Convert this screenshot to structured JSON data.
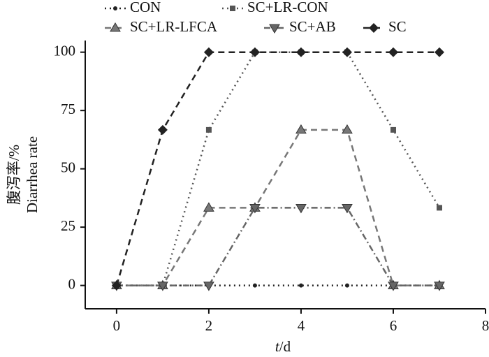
{
  "chart_data": {
    "type": "line",
    "y_label": [
      "腹泻率/%",
      "Diarrhea rate"
    ],
    "x_label": {
      "variable": "t",
      "unit": "/d"
    },
    "x": [
      0,
      1,
      2,
      3,
      4,
      5,
      6,
      7
    ],
    "series": [
      {
        "name": "CON",
        "color": "#222222",
        "dash": "dotted",
        "marker": "circle",
        "values": [
          0,
          0,
          0,
          0,
          0,
          0,
          0,
          0
        ]
      },
      {
        "name": "SC+LR-CON",
        "color": "#555555",
        "dash": "dotted",
        "marker": "square",
        "values": [
          0,
          0,
          66.7,
          100,
          100,
          100,
          66.7,
          33.3
        ]
      },
      {
        "name": "SC+LR-LFCA",
        "color": "#777777",
        "dash": "dashed",
        "marker": "triangle-up",
        "values": [
          0,
          0,
          33.3,
          33.3,
          66.7,
          66.7,
          0,
          0
        ]
      },
      {
        "name": "SC+AB",
        "color": "#666666",
        "dash": "dashdot",
        "marker": "triangle-down",
        "values": [
          0,
          0,
          0,
          33.3,
          33.3,
          33.3,
          0,
          0
        ]
      },
      {
        "name": "SC",
        "color": "#222222",
        "dash": "dashed",
        "marker": "diamond",
        "values": [
          0,
          66.7,
          100,
          100,
          100,
          100,
          100,
          100
        ]
      }
    ],
    "xlim": [
      -0.68,
      8
    ],
    "xticks": [
      0,
      2,
      4,
      6,
      8
    ],
    "ylim": [
      -10,
      105
    ],
    "yticks": [
      0,
      25,
      50,
      75,
      100
    ],
    "grid": false
  }
}
